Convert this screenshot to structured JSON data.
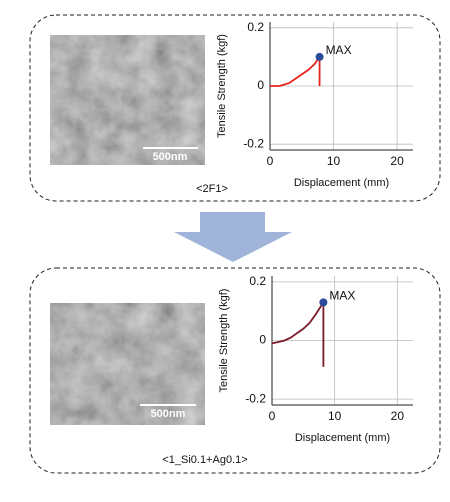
{
  "panels": [
    {
      "scale_bar": "500nm",
      "caption": "<2F1>"
    },
    {
      "scale_bar": "500nm",
      "caption": "<1_Si0.1+Ag0.1>"
    }
  ],
  "chart_data": [
    {
      "type": "line",
      "x_label": "Displacement (mm)",
      "y_label": "Tensile Strength (kgf)",
      "xlim": [
        0,
        22.5
      ],
      "xticks": [
        0,
        10,
        20
      ],
      "ylim": [
        -0.22,
        0.22
      ],
      "yticks": [
        0.2,
        0,
        -0.2
      ],
      "grid": true,
      "series": [
        {
          "color": "#e8221c",
          "x": [
            0,
            1.5,
            3,
            4,
            5,
            6,
            7,
            7.8,
            7.8
          ],
          "values": [
            0,
            0,
            0.01,
            0.025,
            0.04,
            0.055,
            0.075,
            0.1,
            0
          ]
        }
      ],
      "max": {
        "x": 7.8,
        "y": 0.1,
        "label": "MAX",
        "color": "#2a4a9a"
      }
    },
    {
      "type": "line",
      "x_label": "Displacement (mm)",
      "y_label": "Tensile Strength (kgf)",
      "xlim": [
        0,
        22.5
      ],
      "xticks": [
        0,
        10,
        20
      ],
      "ylim": [
        -0.22,
        0.22
      ],
      "yticks": [
        0.2,
        0,
        -0.2
      ],
      "grid": true,
      "series": [
        {
          "color": "#7a1a2a",
          "x": [
            0,
            1,
            2,
            3,
            4,
            5,
            6,
            7,
            8.2,
            8.2
          ],
          "values": [
            -0.01,
            -0.005,
            0,
            0.01,
            0.025,
            0.04,
            0.06,
            0.09,
            0.13,
            -0.09
          ]
        }
      ],
      "max": {
        "x": 8.2,
        "y": 0.13,
        "label": "MAX",
        "color": "#2a4a9a"
      }
    }
  ]
}
